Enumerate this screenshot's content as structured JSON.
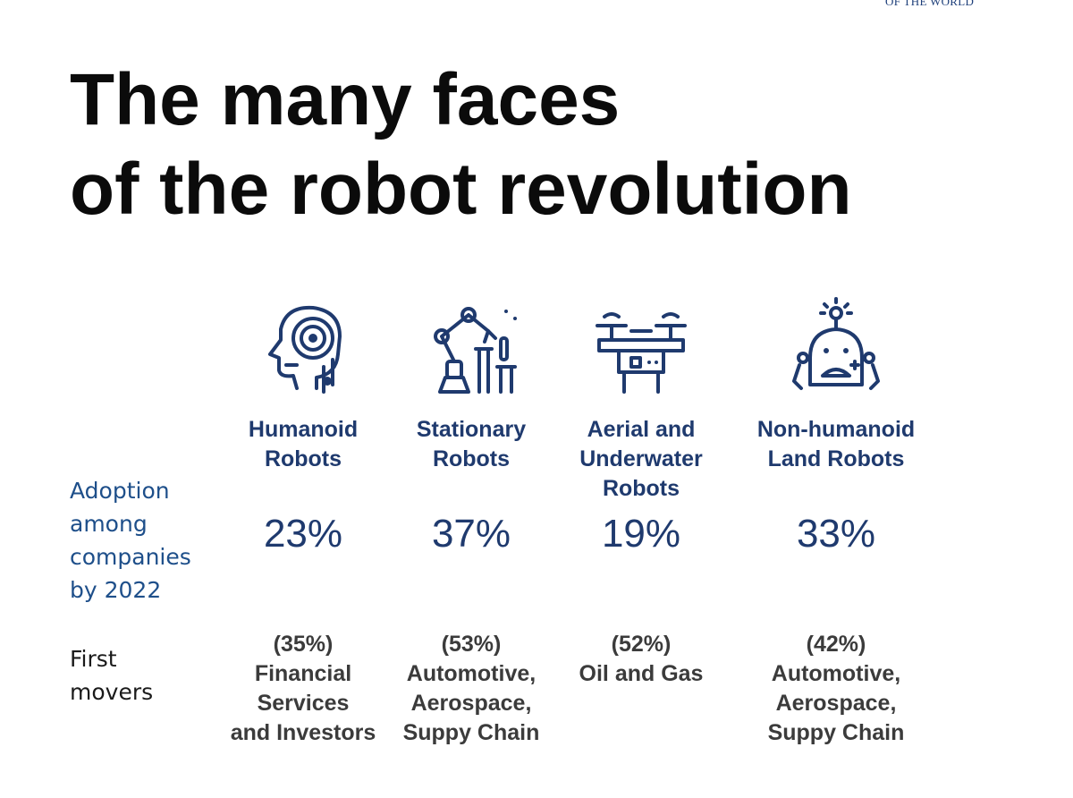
{
  "header": {
    "logo_text": "OF THE WORLD",
    "title_line1": "The many faces",
    "title_line2": "of the robot revolution"
  },
  "row_labels": {
    "adoption": "Adoption\namong\ncompanies\nby 2022",
    "first_movers": "First\nmovers"
  },
  "colors": {
    "accent_navy": "#1f3a6e",
    "label_blue": "#1e4f8a",
    "body_gray": "#3b3b3b"
  },
  "columns": [
    {
      "icon": "humanoid-head-icon",
      "name": "Humanoid\nRobots",
      "adoption": "23%",
      "first_mover_pct": "(35%)",
      "first_mover_industry": "Financial\nServices\nand Investors"
    },
    {
      "icon": "robotic-arm-icon",
      "name": "Stationary\nRobots",
      "adoption": "37%",
      "first_mover_pct": "(53%)",
      "first_mover_industry": "Automotive,\nAerospace,\nSuppy Chain"
    },
    {
      "icon": "drone-icon",
      "name": "Aerial and\nUnderwater\nRobots",
      "adoption": "19%",
      "first_mover_pct": "(52%)",
      "first_mover_industry": "Oil and Gas"
    },
    {
      "icon": "land-robot-icon",
      "name": "Non-humanoid\nLand Robots",
      "adoption": "33%",
      "first_mover_pct": "(42%)",
      "first_mover_industry": "Automotive,\nAerospace,\nSuppy Chain"
    }
  ]
}
